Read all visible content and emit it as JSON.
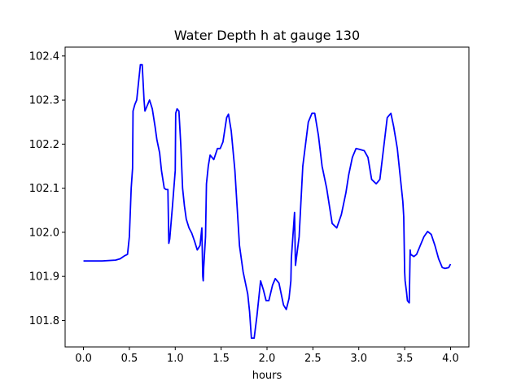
{
  "chart_data": {
    "type": "line",
    "title": "Water Depth h at gauge 130",
    "xlabel": "hours",
    "ylabel": "",
    "xlim": [
      -0.2,
      4.2
    ],
    "ylim": [
      101.74,
      102.42
    ],
    "xticks": [
      0.0,
      0.5,
      1.0,
      1.5,
      2.0,
      2.5,
      3.0,
      3.5,
      4.0
    ],
    "xtick_labels": [
      "0.0",
      "0.5",
      "1.0",
      "1.5",
      "2.0",
      "2.5",
      "3.0",
      "3.5",
      "4.0"
    ],
    "yticks": [
      101.8,
      101.9,
      102.0,
      102.1,
      102.2,
      102.3,
      102.4
    ],
    "ytick_labels": [
      "101.8",
      "101.9",
      "102.0",
      "102.1",
      "102.2",
      "102.3",
      "102.4"
    ],
    "grid": false,
    "series": [
      {
        "color": "#0000ff",
        "x": [
          0.0,
          0.2,
          0.35,
          0.4,
          0.45,
          0.48,
          0.5,
          0.52,
          0.535,
          0.54,
          0.56,
          0.58,
          0.6,
          0.62,
          0.64,
          0.66,
          0.67,
          0.7,
          0.72,
          0.75,
          0.78,
          0.8,
          0.83,
          0.85,
          0.88,
          0.9,
          0.92,
          0.93,
          0.94,
          0.97,
          1.0,
          1.005,
          1.02,
          1.04,
          1.06,
          1.08,
          1.1,
          1.12,
          1.15,
          1.18,
          1.21,
          1.24,
          1.27,
          1.29,
          1.3,
          1.305,
          1.31,
          1.33,
          1.34,
          1.36,
          1.38,
          1.42,
          1.46,
          1.49,
          1.52,
          1.56,
          1.58,
          1.61,
          1.65,
          1.7,
          1.74,
          1.77,
          1.79,
          1.81,
          1.83,
          1.86,
          1.89,
          1.93,
          1.96,
          1.99,
          2.02,
          2.06,
          2.09,
          2.13,
          2.18,
          2.21,
          2.24,
          2.26,
          2.265,
          2.3,
          2.31,
          2.35,
          2.39,
          2.42,
          2.45,
          2.49,
          2.52,
          2.56,
          2.6,
          2.63,
          2.65,
          2.68,
          2.71,
          2.76,
          2.81,
          2.86,
          2.89,
          2.93,
          2.97,
          3.01,
          3.06,
          3.1,
          3.14,
          3.19,
          3.23,
          3.27,
          3.31,
          3.35,
          3.38,
          3.42,
          3.45,
          3.48,
          3.49,
          3.5,
          3.505,
          3.52,
          3.53,
          3.55,
          3.56,
          3.565,
          3.6,
          3.63,
          3.67,
          3.71,
          3.75,
          3.79,
          3.83,
          3.87,
          3.91,
          3.94,
          3.98,
          4.0
        ],
        "y": [
          101.935,
          101.935,
          101.937,
          101.94,
          101.947,
          101.95,
          101.99,
          102.1,
          102.145,
          102.275,
          102.29,
          102.3,
          102.34,
          102.38,
          102.38,
          102.3,
          102.275,
          102.29,
          102.3,
          102.28,
          102.24,
          102.21,
          102.18,
          102.14,
          102.1,
          102.097,
          102.097,
          101.975,
          101.985,
          102.06,
          102.14,
          102.27,
          102.28,
          102.275,
          102.2,
          102.1,
          102.06,
          102.03,
          102.01,
          101.998,
          101.98,
          101.96,
          101.97,
          102.01,
          101.9,
          101.89,
          101.92,
          101.99,
          102.11,
          102.15,
          102.175,
          102.165,
          102.19,
          102.19,
          102.205,
          102.26,
          102.268,
          102.23,
          102.14,
          101.97,
          101.91,
          101.88,
          101.86,
          101.82,
          101.76,
          101.76,
          101.81,
          101.89,
          101.87,
          101.845,
          101.845,
          101.88,
          101.895,
          101.885,
          101.835,
          101.825,
          101.85,
          101.89,
          101.94,
          102.045,
          101.925,
          101.99,
          102.15,
          102.2,
          102.25,
          102.27,
          102.27,
          102.22,
          102.15,
          102.12,
          102.1,
          102.06,
          102.02,
          102.01,
          102.04,
          102.09,
          102.13,
          102.17,
          102.19,
          102.188,
          102.185,
          102.17,
          102.12,
          102.11,
          102.12,
          102.19,
          102.26,
          102.27,
          102.24,
          102.19,
          102.13,
          102.07,
          102.035,
          101.91,
          101.89,
          101.865,
          101.845,
          101.84,
          101.96,
          101.95,
          101.945,
          101.95,
          101.97,
          101.99,
          102.002,
          101.995,
          101.97,
          101.94,
          101.92,
          101.918,
          101.92,
          101.928
        ]
      }
    ]
  }
}
